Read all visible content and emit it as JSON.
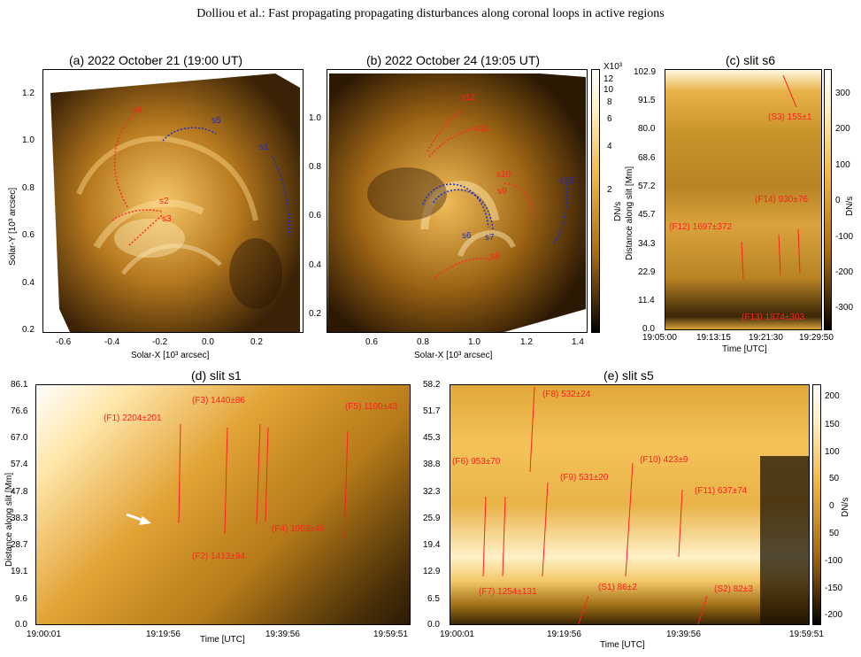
{
  "header": "Dolliou et al.: Fast propagating propagating disturbances along coronal loops in active regions",
  "panel_a": {
    "title": "(a) 2022 October 21 (19:00 UT)",
    "xlabel": "Solar-X [10³ arcsec]",
    "ylabel": "Solar-Y [10³ arcsec]",
    "xticks": [
      "-0.6",
      "-0.4",
      "-0.2",
      "0.0",
      "0.2"
    ],
    "yticks": [
      "1.2",
      "1.0",
      "0.8",
      "0.6",
      "0.4",
      "0.2"
    ],
    "slits": [
      "s1",
      "s2",
      "s3",
      "s4",
      "s5"
    ]
  },
  "panel_b": {
    "title": "(b) 2022 October 24 (19:05 UT)",
    "xlabel": "Solar-X [10³ arcsec]",
    "xticks": [
      "0.6",
      "0.8",
      "1.0",
      "1.2",
      "1.4"
    ],
    "yticks": [
      "1.0",
      "0.8",
      "0.6",
      "0.4",
      "0.2"
    ],
    "slits": [
      "s6",
      "s7",
      "s8",
      "s9",
      "s10",
      "s11",
      "s12",
      "s13"
    ],
    "colorbar": {
      "unit_label": "X10³",
      "ticks": [
        "12",
        "10",
        "8",
        "6",
        "4",
        "2"
      ],
      "label": "DN/s"
    }
  },
  "panel_c": {
    "title": "(c) slit s6",
    "ylabel": "Distance along slit [Mm]",
    "xlabel": "Time [UTC]",
    "yticks": [
      "102.9",
      "91.5",
      "80.0",
      "68.6",
      "57.2",
      "45.7",
      "34.3",
      "22.9",
      "11.4",
      "0.0"
    ],
    "xticks": [
      "19:05:00",
      "19:13:15",
      "19:21:30",
      "19:29:50"
    ],
    "colorbar": {
      "ticks": [
        "300",
        "200",
        "100",
        "0",
        "-100",
        "-200",
        "-300"
      ],
      "label": "DN/s"
    },
    "annotations": [
      "(S3) 155±1",
      "(F14) 930±76",
      "(F12) 1697±372",
      "(F13) 1874±303"
    ]
  },
  "panel_d": {
    "title": "(d) slit s1",
    "ylabel": "Distance along slit [Mm]",
    "xlabel": "Time [UTC]",
    "yticks": [
      "86.1",
      "76.6",
      "67.0",
      "57.4",
      "47.8",
      "38.3",
      "28.7",
      "19.1",
      "9.6",
      "0.0"
    ],
    "xticks": [
      "19:00:01",
      "19:19:56",
      "19:39:56",
      "19:59:51"
    ],
    "annotations": [
      "(F1) 2204±201",
      "(F3) 1440±86",
      "(F5) 1100±43",
      "(F4) 1053±48",
      "(F2) 1413±94"
    ]
  },
  "panel_e": {
    "title": "(e) slit s5",
    "xlabel": "Time [UTC]",
    "yticks": [
      "58.2",
      "51.7",
      "45.3",
      "38.8",
      "32.3",
      "25.9",
      "19.4",
      "12.9",
      "6.5",
      "0.0"
    ],
    "xticks": [
      "19:00:01",
      "19:19:56",
      "19:39:56",
      "19:59:51"
    ],
    "colorbar": {
      "ticks": [
        "200",
        "150",
        "100",
        "50",
        "0",
        "50",
        "-100",
        "-150",
        "-200"
      ],
      "label": "DN/s"
    },
    "annotations": [
      "(F8) 532±24",
      "(F6) 953±70",
      "(F9) 531±20",
      "(F10) 423±9",
      "(F11) 637±74",
      "(F7) 1254±131",
      "(S1) 86±2",
      "(S2) 82±3"
    ]
  },
  "colors": {
    "annotation_red": "#ff2020",
    "slit_blue": "#1a2cd0",
    "gold": "#e8a72a"
  }
}
